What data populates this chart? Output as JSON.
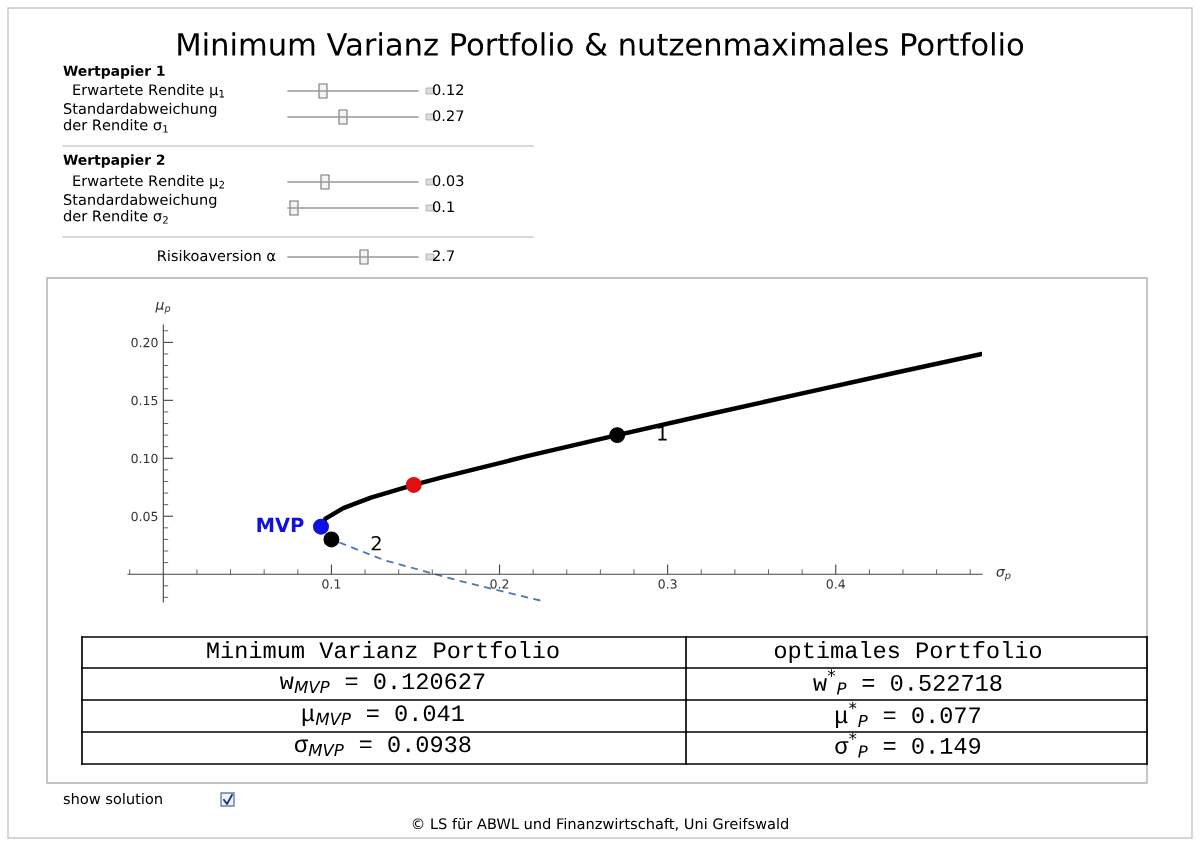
{
  "chart_data": {
    "type": "line",
    "title": "Minimum Varianz Portfolio & nutzenmaximales Portfolio",
    "xlabel": "σ$_{p}$",
    "ylabel": "μ$_{p}$",
    "xlim": [
      -0.021,
      0.487
    ],
    "ylim": [
      -0.024,
      0.215
    ],
    "xticks": [
      {
        "value": -0.02,
        "label": null
      },
      {
        "value": 0.02,
        "label": null
      },
      {
        "value": 0.04,
        "label": null
      },
      {
        "value": 0.06,
        "label": null
      },
      {
        "value": 0.08,
        "label": null
      },
      0.1,
      {
        "value": 0.12,
        "label": null
      },
      {
        "value": 0.14,
        "label": null
      },
      {
        "value": 0.16,
        "label": null
      },
      {
        "value": 0.18,
        "label": null
      },
      0.2,
      {
        "value": 0.22,
        "label": null
      },
      {
        "value": 0.24,
        "label": null
      },
      {
        "value": 0.26,
        "label": null
      },
      {
        "value": 0.28,
        "label": null
      },
      0.3,
      {
        "value": 0.32,
        "label": null
      },
      {
        "value": 0.34,
        "label": null
      },
      {
        "value": 0.36,
        "label": null
      },
      {
        "value": 0.38,
        "label": null
      },
      0.4,
      {
        "value": 0.42,
        "label": null
      },
      {
        "value": 0.44,
        "label": null
      },
      {
        "value": 0.46,
        "label": null
      },
      {
        "value": 0.48,
        "label": null
      }
    ],
    "yticks": [
      {
        "value": -0.02,
        "label": null
      },
      {
        "value": -0.01,
        "label": null
      },
      {
        "value": 0.01,
        "label": null
      },
      {
        "value": 0.02,
        "label": null
      },
      {
        "value": 0.03,
        "label": null
      },
      {
        "value": 0.04,
        "label": null
      },
      0.05,
      {
        "value": 0.06,
        "label": null
      },
      {
        "value": 0.07,
        "label": null
      },
      {
        "value": 0.08,
        "label": null
      },
      {
        "value": 0.09,
        "label": null
      },
      {
        "value": 0.1,
        "label": "0.10"
      },
      {
        "value": 0.11,
        "label": null
      },
      {
        "value": 0.12,
        "label": null
      },
      {
        "value": 0.13,
        "label": null
      },
      {
        "value": 0.14,
        "label": null
      },
      0.15,
      {
        "value": 0.16,
        "label": null
      },
      {
        "value": 0.17,
        "label": null
      },
      {
        "value": 0.18,
        "label": null
      },
      {
        "value": 0.19,
        "label": null
      },
      {
        "value": 0.2,
        "label": "0.20"
      },
      {
        "value": 0.21,
        "label": null
      }
    ],
    "series": [
      {
        "color": "#000000",
        "line_style": "solid",
        "x": [
          0.0938,
          0.0965,
          0.1071,
          0.1235,
          0.149,
          0.1669,
          0.2169,
          0.27,
          0.3246,
          0.3801,
          0.4361,
          0.4869
        ],
        "values": [
          0.041,
          0.048,
          0.057,
          0.066,
          0.077,
          0.084,
          0.102,
          0.12,
          0.138,
          0.156,
          0.174,
          0.19
        ]
      },
      {
        "type": "line",
        "color": "#4a78b0",
        "line_style": "dashed",
        "x": [
          0.0938,
          0.096,
          0.1,
          0.1316,
          0.1768,
          0.2251
        ],
        "values": [
          0.041,
          0.035,
          0.03,
          0.012,
          -0.006,
          -0.023
        ]
      },
      {
        "type": "scatter",
        "marker": "circle",
        "x": [
          0.0938,
          0.149,
          0.27,
          0.1
        ],
        "values": [
          0.041,
          0.077,
          0.12,
          0.03
        ],
        "colors": [
          "#1010e0",
          "#e01010",
          "#000000",
          "#000000"
        ]
      }
    ],
    "annotations": [
      {
        "text": "MVP",
        "x": 0.0938,
        "y": 0.041
      },
      {
        "text": "1",
        "x": 0.27,
        "y": 0.12
      },
      {
        "text": "2",
        "x": 0.1,
        "y": 0.03
      },
      "Wertpapier 1",
      "Erwartete Rendite μ$_{1}$",
      "0.12",
      "Standardabweichung\nder Rendite σ$_{1}$",
      "0.27",
      "Wertpapier 2",
      "Erwartete Rendite μ$_{2}$",
      "0.03",
      "Standardabweichung\nder Rendite σ$_{2}$",
      "0.1",
      "Risikoaversion α",
      "2.7",
      "Minimum Varianz Portfolio",
      "optimales Portfolio",
      "w$_{MVP}$ = 0.120627",
      "w$^{*}$$_{P}$ = 0.522718",
      "μ$_{MVP}$ = 0.041",
      "μ$^{*}$$_{P}$ = 0.077",
      "σ$_{MVP}$ = 0.0938",
      "σ$^{*}$$_{P}$ = 0.149",
      "show solution",
      "© LS für ABWL und Finanzwirtschaft, Uni Greifswald"
    ]
  }
}
